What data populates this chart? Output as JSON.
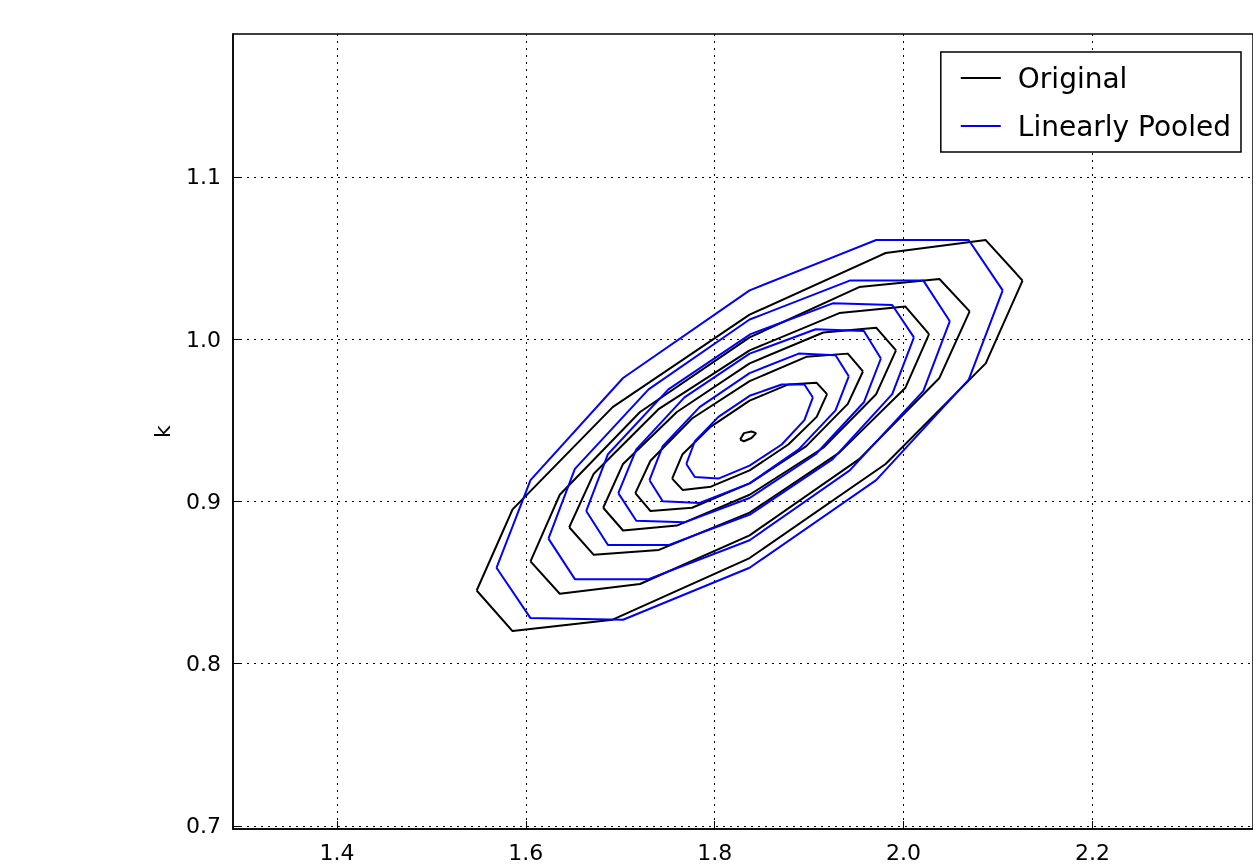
{
  "chart_data": {
    "type": "line",
    "ylabel": "k",
    "xlim": [
      1.29,
      2.37
    ],
    "ylim": [
      0.698,
      1.188
    ],
    "xticks": [
      1.4,
      1.6,
      1.8,
      {
        "value": 2,
        "label": "2.0"
      },
      2.2
    ],
    "yticks": [
      0.7,
      0.8,
      0.9,
      {
        "value": 1,
        "label": "1.0"
      },
      1.1
    ],
    "grid": true,
    "legend": "top right",
    "marker": "none",
    "series": [
      {
        "name": "Original",
        "color": "#000000",
        "x": [
          1.548,
          1.586,
          1.692,
          1.837,
          1.981,
          2.087,
          2.126
        ],
        "values": [
          0.845,
          0.895,
          0.958,
          1.015,
          1.053,
          1.061,
          1.036
        ]
      },
      {
        "color": "#000000",
        "x": [
          1.548,
          1.586,
          1.692,
          1.837,
          1.981,
          2.087,
          2.126
        ],
        "values": [
          0.845,
          0.82,
          0.827,
          0.865,
          0.923,
          0.985,
          1.036
        ]
      },
      {
        "color": "#000000",
        "x": [
          1.605,
          1.636,
          1.721,
          1.837,
          1.953,
          2.038,
          2.07
        ],
        "values": [
          0.863,
          0.904,
          0.955,
          1.001,
          1.032,
          1.037,
          1.017
        ]
      },
      {
        "color": "#000000",
        "x": [
          1.605,
          1.636,
          1.721,
          1.837,
          1.953,
          2.038,
          2.07
        ],
        "values": [
          0.863,
          0.843,
          0.849,
          0.879,
          0.926,
          0.976,
          1.017
        ]
      },
      {
        "color": "#000000",
        "x": [
          1.646,
          1.672,
          1.741,
          1.837,
          1.932,
          2.002,
          2.027
        ],
        "values": [
          0.884,
          0.917,
          0.957,
          0.993,
          1.016,
          1.02,
          1.003
        ]
      },
      {
        "color": "#000000",
        "x": [
          1.646,
          1.672,
          1.741,
          1.837,
          1.932,
          2.002,
          2.027
        ],
        "values": [
          0.884,
          0.867,
          0.87,
          0.893,
          0.93,
          0.97,
          1.003
        ]
      },
      {
        "color": "#000000",
        "x": [
          1.682,
          1.703,
          1.76,
          1.837,
          1.915,
          1.971,
          1.992
        ],
        "values": [
          0.896,
          0.923,
          0.955,
          0.985,
          1.004,
          1.007,
          0.993
        ]
      },
      {
        "color": "#000000",
        "x": [
          1.682,
          1.703,
          1.76,
          1.837,
          1.915,
          1.971,
          1.992
        ],
        "values": [
          0.896,
          0.882,
          0.885,
          0.904,
          0.933,
          0.966,
          0.993
        ]
      },
      {
        "color": "#000000",
        "x": [
          1.716,
          1.732,
          1.776,
          1.837,
          1.897,
          1.941,
          1.957
        ],
        "values": [
          0.905,
          0.925,
          0.951,
          0.974,
          0.989,
          0.991,
          0.98
        ]
      },
      {
        "color": "#000000",
        "x": [
          1.716,
          1.732,
          1.776,
          1.837,
          1.897,
          1.941,
          1.957
        ],
        "values": [
          0.905,
          0.894,
          0.896,
          0.911,
          0.934,
          0.96,
          0.98
        ]
      },
      {
        "color": "#000000",
        "x": [
          1.755,
          1.766,
          1.796,
          1.837,
          1.878,
          1.908,
          1.919
        ],
        "values": [
          0.914,
          0.929,
          0.946,
          0.962,
          0.972,
          0.973,
          0.966
        ]
      },
      {
        "color": "#000000",
        "x": [
          1.755,
          1.766,
          1.796,
          1.837,
          1.878,
          1.908,
          1.919
        ],
        "values": [
          0.914,
          0.907,
          0.909,
          0.919,
          0.935,
          0.952,
          0.966
        ]
      },
      {
        "color": "#000000",
        "x": [
          1.827,
          1.831,
          1.839,
          1.844
        ],
        "values": [
          0.938,
          0.942,
          0.943,
          0.942
        ]
      },
      {
        "color": "#000000",
        "x": [
          1.827,
          1.831,
          1.839,
          1.844
        ],
        "values": [
          0.938,
          0.937,
          0.939,
          0.942
        ]
      },
      {
        "name": "Linearly Pooled",
        "color": "#0000ff",
        "x": [
          1.569,
          1.605,
          1.703,
          1.837,
          1.971,
          2.069,
          2.105
        ],
        "values": [
          0.859,
          0.913,
          0.976,
          1.03,
          1.061,
          1.061,
          1.03
        ]
      },
      {
        "color": "#0000ff",
        "x": [
          1.569,
          1.605,
          1.703,
          1.837,
          1.971,
          2.069,
          2.105
        ],
        "values": [
          0.859,
          0.828,
          0.827,
          0.859,
          0.913,
          0.975,
          1.03
        ]
      },
      {
        "color": "#0000ff",
        "x": [
          1.624,
          1.652,
          1.73,
          1.837,
          1.943,
          2.021,
          2.049
        ],
        "values": [
          0.877,
          0.92,
          0.969,
          1.012,
          1.036,
          1.036,
          1.011
        ]
      },
      {
        "color": "#0000ff",
        "x": [
          1.624,
          1.652,
          1.73,
          1.837,
          1.943,
          2.021,
          2.049
        ],
        "values": [
          0.877,
          0.852,
          0.852,
          0.876,
          0.919,
          0.968,
          1.011
        ]
      },
      {
        "color": "#0000ff",
        "x": [
          1.664,
          1.687,
          1.751,
          1.838,
          1.925,
          1.988,
          2.011
        ],
        "values": [
          0.894,
          0.929,
          0.969,
          1.003,
          1.022,
          1.021,
          1.001
        ]
      },
      {
        "color": "#0000ff",
        "x": [
          1.664,
          1.687,
          1.751,
          1.838,
          1.925,
          1.988,
          2.011
        ],
        "values": [
          0.894,
          0.873,
          0.873,
          0.892,
          0.926,
          0.966,
          1.001
        ]
      },
      {
        "color": "#0000ff",
        "x": [
          1.698,
          1.717,
          1.768,
          1.837,
          1.907,
          1.958,
          1.976
        ],
        "values": [
          0.905,
          0.932,
          0.964,
          0.991,
          1.006,
          1.005,
          0.988
        ]
      },
      {
        "color": "#0000ff",
        "x": [
          1.698,
          1.717,
          1.768,
          1.837,
          1.907,
          1.958,
          1.976
        ],
        "values": [
          0.905,
          0.888,
          0.887,
          0.902,
          0.929,
          0.961,
          0.988
        ]
      },
      {
        "color": "#0000ff",
        "x": [
          1.731,
          1.745,
          1.784,
          1.837,
          1.889,
          1.928,
          1.942
        ],
        "values": [
          0.913,
          0.934,
          0.958,
          0.979,
          0.991,
          0.99,
          0.977
        ]
      },
      {
        "color": "#0000ff",
        "x": [
          1.731,
          1.745,
          1.784,
          1.837,
          1.889,
          1.928,
          1.942
        ],
        "values": [
          0.913,
          0.9,
          0.899,
          0.911,
          0.932,
          0.956,
          0.977
        ]
      },
      {
        "color": "#0000ff",
        "x": [
          1.77,
          1.779,
          1.804,
          1.837,
          1.871,
          1.895,
          1.904
        ],
        "values": [
          0.923,
          0.937,
          0.952,
          0.965,
          0.972,
          0.972,
          0.964
        ]
      },
      {
        "color": "#0000ff",
        "x": [
          1.77,
          1.779,
          1.804,
          1.837,
          1.871,
          1.895,
          1.904
        ],
        "values": [
          0.923,
          0.915,
          0.914,
          0.922,
          0.935,
          0.95,
          0.964
        ]
      }
    ]
  }
}
